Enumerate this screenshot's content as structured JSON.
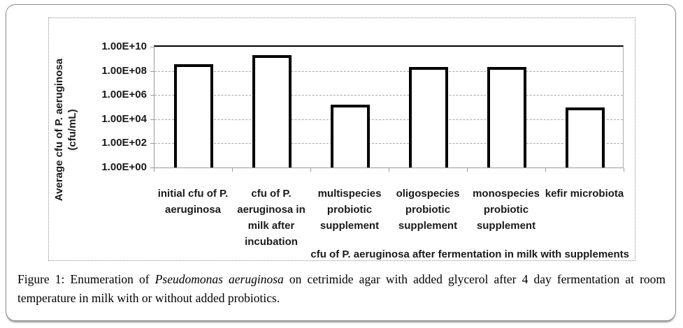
{
  "caption": {
    "prefix": "Figure 1:",
    "text_1": " Enumeration of ",
    "italic_species": "Pseudomonas aeruginosa",
    "text_2": " on cetrimide agar with added glycerol after 4 day fermentation at room temperature in milk with or without added probiotics."
  },
  "chart_data": {
    "type": "bar",
    "title": "",
    "ylabel_line1": "Average cfu of P. aeruginosa",
    "ylabel_line2": "(cfu/mL)",
    "xlabel": "cfu of P. aeruginosa after fermentation in milk with supplements",
    "categories": [
      "initial cfu of P. aeruginosa",
      "cfu of P. aeruginosa in milk after incubation",
      "multispecies probiotic supplement",
      "oligospecies probiotic supplement",
      "monospecies probiotic supplement",
      "kefir microbiota"
    ],
    "values": [
      350000000.0,
      2000000000.0,
      160000.0,
      220000000.0,
      220000000.0,
      100000.0
    ],
    "y_ticks": [
      "1.00E+10",
      "1.00E+08",
      "1.00E+06",
      "1.00E+04",
      "1.00E+02",
      "1.00E+00"
    ],
    "y_scale": "log10",
    "ylim_exponents": [
      0,
      10
    ],
    "grid": "horizontal-dashed",
    "legend": "none",
    "bar_fill": "#ffffff",
    "bar_border": "#000000"
  }
}
